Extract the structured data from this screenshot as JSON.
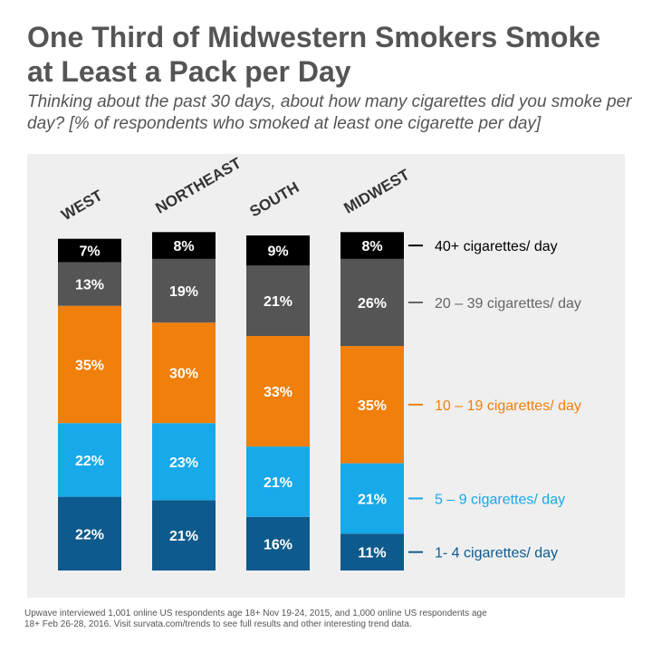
{
  "title": "One Third of Midwestern Smokers Smoke at Least a Pack per Day",
  "subtitle": "Thinking about the past 30 days, about how many cigarettes did you smoke per day? [% of respondents who smoked at least one cigarette per day]",
  "footnote": "Upwave interviewed 1,001 online US respondents age 18+ Nov 19-24, 2015, and 1,000 online US respondents age 18+ Feb 26-28, 2016. Visit survata.com/trends to see full results and other interesting trend data.",
  "chart_data": {
    "type": "bar",
    "stacked": true,
    "unit": "%",
    "categories": [
      "WEST",
      "NORTHEAST",
      "SOUTH",
      "MIDWEST"
    ],
    "series": [
      {
        "name": "1- 4 cigarettes/ day",
        "color": "#0f5a8c",
        "values": [
          22,
          21,
          16,
          11
        ]
      },
      {
        "name": "5 – 9 cigarettes/ day",
        "color": "#17a9e9",
        "values": [
          22,
          23,
          21,
          21
        ]
      },
      {
        "name": "10 – 19 cigarettes/ day",
        "color": "#f07f0b",
        "values": [
          35,
          30,
          33,
          35
        ]
      },
      {
        "name": "20 – 39 cigarettes/ day",
        "color": "#555555",
        "values": [
          13,
          19,
          21,
          26
        ]
      },
      {
        "name": "40+ cigarettes/ day",
        "color": "#000000",
        "values": [
          7,
          8,
          9,
          8
        ]
      }
    ],
    "legend_position": "right",
    "grid": false
  }
}
